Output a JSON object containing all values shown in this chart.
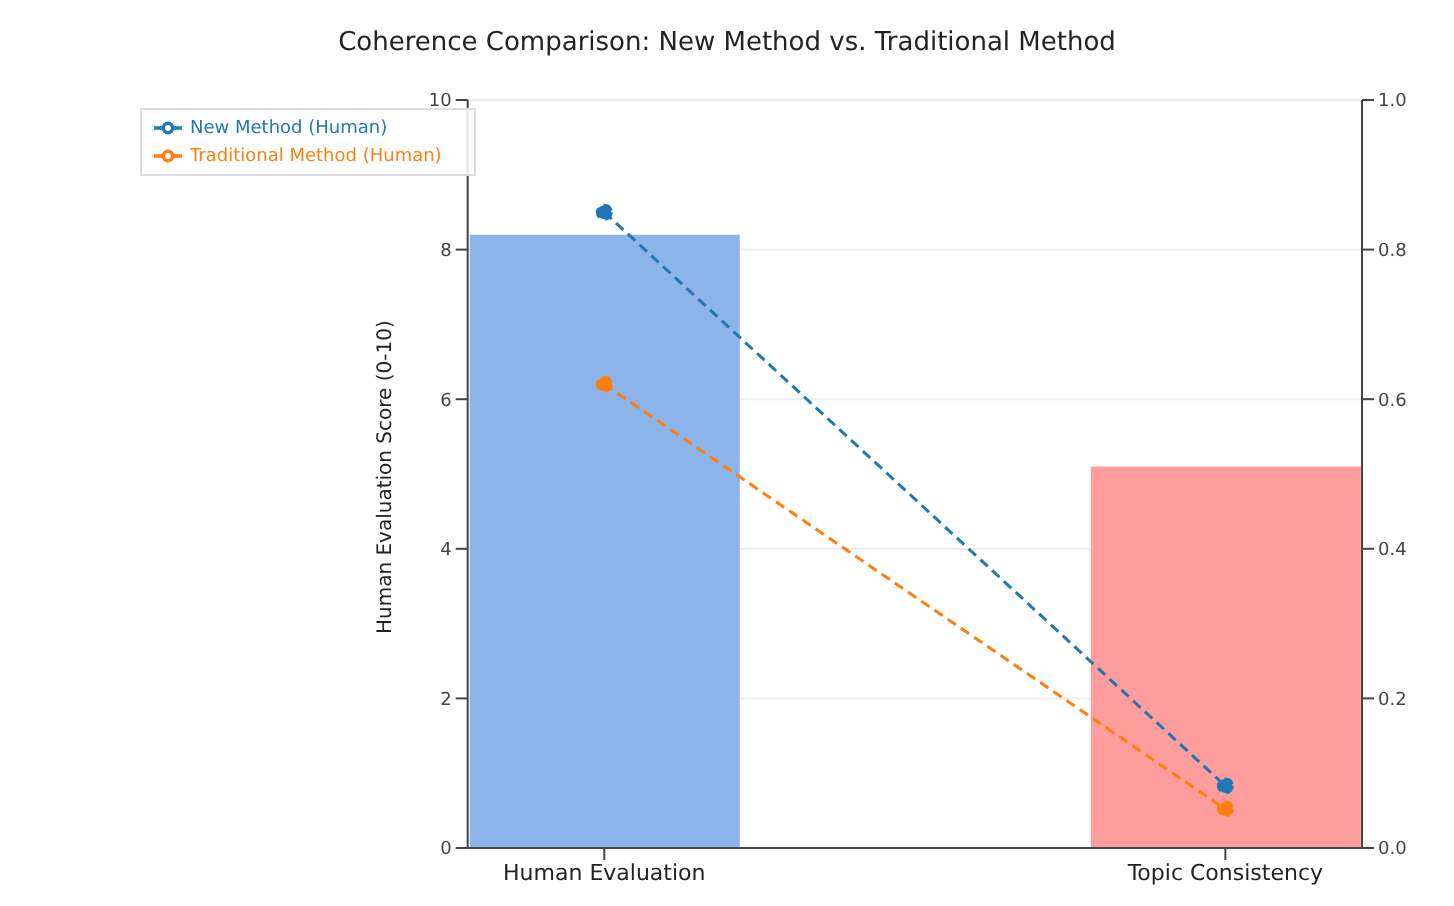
{
  "chart_data": {
    "type": "bar",
    "title": "Coherence Comparison: New Method vs. Traditional Method",
    "ylabel": "Human Evaluation Score (0-10)",
    "categories": [
      "Human Evaluation",
      "Topic Consistency"
    ],
    "series": [
      {
        "color": "#8db4ea",
        "values": [
          8.2,
          null
        ]
      },
      {
        "color": "#ff9c9c",
        "values": [
          null,
          0.51
        ],
        "axis": "y2"
      },
      {
        "type": "line",
        "name": "New Method (Human)",
        "color": "#1f77b4",
        "values": [
          8.5,
          0.83
        ]
      },
      {
        "type": "line",
        "name": "Traditional Method (Human)",
        "color": "#ff7f0e",
        "values": [
          6.2,
          0.52
        ]
      }
    ],
    "ylim": [
      0,
      10
    ],
    "yticks": [
      0,
      2,
      4,
      6,
      8,
      10
    ],
    "y2lim": [
      0,
      1
    ],
    "y2ticks": [
      {
        "value": 0,
        "label": "0.0"
      },
      0.2,
      0.4,
      0.6,
      0.8,
      {
        "value": 1,
        "label": "1.0"
      }
    ],
    "grid": "y",
    "legend": "top left",
    "marker": "circle",
    "line_style": "dashed"
  }
}
